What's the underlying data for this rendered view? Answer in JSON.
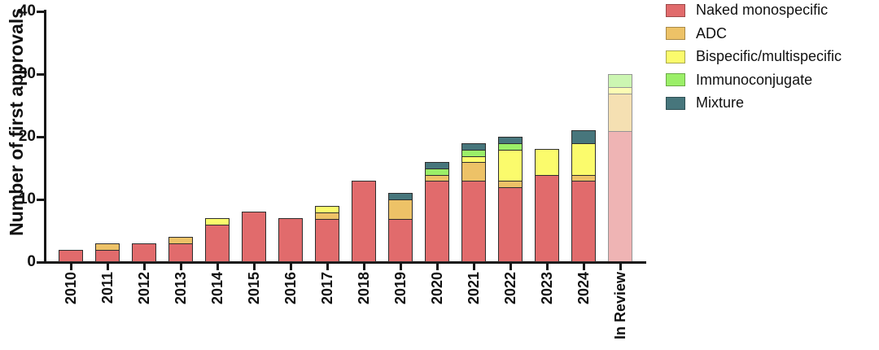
{
  "chart_data": {
    "type": "bar",
    "stacked": true,
    "title": "",
    "ylabel": "Number of first approvals",
    "xlabel": "",
    "ylim": [
      0,
      40
    ],
    "y_ticks": [
      "0",
      "10",
      "20",
      "30",
      "40"
    ],
    "grid": false,
    "legend_position": "top-right",
    "categories": [
      "2010",
      "2011",
      "2012",
      "2013",
      "2014",
      "2015",
      "2016",
      "2017",
      "2018",
      "2019",
      "2020",
      "2021",
      "2022",
      "2023",
      "2024",
      "In Review"
    ],
    "faded_categories": [
      "In Review"
    ],
    "totals": [
      2,
      3,
      3,
      4,
      7,
      8,
      7,
      9,
      13,
      11,
      16,
      19,
      20,
      18,
      21,
      30
    ],
    "outline_color": "#2e2e2e",
    "series": [
      {
        "name": "Naked monospecific",
        "color": "#e16b6c",
        "border": "#9c4a4a",
        "values": [
          2,
          2,
          3,
          3,
          6,
          8,
          7,
          7,
          13,
          7,
          13,
          13,
          12,
          14,
          13,
          21
        ]
      },
      {
        "name": "ADC",
        "color": "#edc267",
        "border": "#a98a48",
        "values": [
          0,
          1,
          0,
          1,
          0,
          0,
          0,
          1,
          0,
          3,
          1,
          3,
          1,
          0,
          1,
          6
        ]
      },
      {
        "name": "Bispecific/multispecific",
        "color": "#fbfb6c",
        "border": "#a9a94e",
        "values": [
          0,
          0,
          0,
          0,
          1,
          0,
          0,
          1,
          0,
          0,
          0,
          1,
          5,
          4,
          5,
          1
        ]
      },
      {
        "name": "Immunoconjugate",
        "color": "#9bef68",
        "border": "#6ca948",
        "values": [
          0,
          0,
          0,
          0,
          0,
          0,
          0,
          0,
          0,
          0,
          1,
          1,
          1,
          0,
          0,
          2
        ]
      },
      {
        "name": "Mixture",
        "color": "#47767c",
        "border": "#2e4f54",
        "values": [
          0,
          0,
          0,
          0,
          0,
          0,
          0,
          0,
          0,
          1,
          1,
          1,
          1,
          0,
          2,
          0
        ]
      }
    ]
  }
}
